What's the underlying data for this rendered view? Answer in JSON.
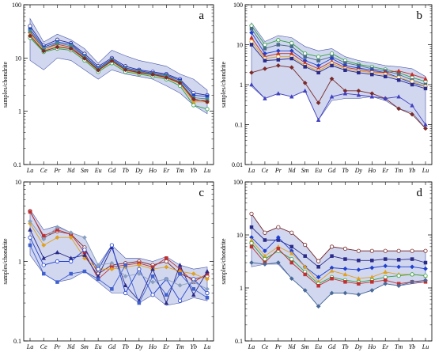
{
  "chart_data": [
    {
      "panel": "a",
      "type": "line",
      "ylabel": "samples/chondrite",
      "yscale": "log",
      "ylim": [
        0.1,
        100
      ],
      "ytick_labels": [
        "0.1",
        "1",
        "10",
        "100"
      ],
      "categories": [
        "La",
        "Ce",
        "Pr",
        "Nd",
        "Sm",
        "Eu",
        "Gd",
        "Tb",
        "Dy",
        "Ho",
        "Er",
        "Tm",
        "Yb",
        "Lu"
      ],
      "band_upper": [
        55,
        20,
        28,
        22,
        15,
        8,
        14,
        11,
        9,
        8,
        7,
        5,
        4,
        2.5
      ],
      "band_lower": [
        9,
        6,
        10,
        9,
        6,
        4,
        6,
        5,
        4.5,
        4,
        3,
        2.2,
        1.3,
        0.9
      ],
      "series": [
        {
          "color": "#2a2a8a",
          "values": [
            40,
            17,
            22,
            19,
            12,
            7,
            10,
            7,
            6,
            5.5,
            5,
            4,
            2.2,
            2
          ]
        },
        {
          "color": "#1f3fd0",
          "values": [
            35,
            16,
            20,
            18,
            11,
            6.5,
            9.5,
            6.5,
            5.8,
            5.2,
            4.8,
            3.8,
            2,
            1.9
          ]
        },
        {
          "color": "#c03030",
          "values": [
            30,
            15,
            18,
            16,
            10,
            6,
            9,
            6,
            5.5,
            5,
            4.4,
            3.5,
            1.6,
            1.6
          ]
        },
        {
          "color": "#e0a020",
          "values": [
            28,
            14,
            17,
            15,
            9.5,
            5.8,
            8.6,
            5.8,
            5.2,
            4.8,
            4.2,
            3.3,
            1.5,
            1.5
          ]
        },
        {
          "color": "#30a040",
          "values": [
            24,
            13,
            15,
            14,
            9,
            5.5,
            8,
            5.5,
            5,
            4.5,
            4,
            3,
            1.3,
            1.1
          ]
        },
        {
          "color": "#4a8a8a",
          "values": [
            32,
            15,
            19,
            17,
            10.5,
            6.2,
            9.2,
            6.2,
            5.6,
            5,
            4.6,
            3.6,
            1.8,
            1.7
          ]
        },
        {
          "color": "#7a2a2a",
          "values": [
            26,
            13.5,
            16,
            15,
            9.8,
            5.9,
            8.8,
            6,
            5.3,
            4.9,
            4.3,
            3.4,
            1.7,
            1.5
          ]
        }
      ]
    },
    {
      "panel": "b",
      "type": "line",
      "ylabel": "samples/chondrite",
      "yscale": "log",
      "ylim": [
        0.01,
        100
      ],
      "ytick_labels": [
        "0.01",
        "0.1",
        "1",
        "10",
        "100"
      ],
      "categories": [
        "La",
        "Ce",
        "Pr",
        "Nd",
        "Sm",
        "Eu",
        "Gd",
        "Tb",
        "Dy",
        "Ho",
        "Er",
        "Tm",
        "Yb",
        "Lu"
      ],
      "band_upper": [
        35,
        12,
        17,
        15,
        9,
        7,
        8,
        5,
        4,
        3.5,
        3,
        2.8,
        2.5,
        1.6
      ],
      "band_lower": [
        0.9,
        0.45,
        0.6,
        0.5,
        0.7,
        0.13,
        0.4,
        0.45,
        0.45,
        0.5,
        0.4,
        0.25,
        0.2,
        0.08
      ],
      "series": [
        {
          "color": "#30a040",
          "values": [
            30,
            10,
            13,
            11,
            6,
            5,
            6,
            4,
            3.2,
            2.8,
            2.4,
            2,
            1.5,
            1.2
          ]
        },
        {
          "color": "#4a6a8a",
          "values": [
            25,
            8,
            10,
            9,
            5,
            4,
            5,
            3.5,
            3,
            2.5,
            2.2,
            1.8,
            1.3,
            1
          ]
        },
        {
          "color": "#1f3fd0",
          "values": [
            20,
            6,
            7,
            7,
            4,
            3,
            4.5,
            3,
            2.6,
            2.3,
            2,
            1.5,
            1.1,
            0.9
          ]
        },
        {
          "color": "#c03030",
          "values": [
            15,
            5,
            6,
            6,
            3.5,
            2.5,
            3.8,
            2.7,
            2.4,
            2.1,
            2,
            2.2,
            1.8,
            1.4
          ]
        },
        {
          "color": "#e0a020",
          "values": [
            12,
            4.5,
            5,
            5,
            3,
            2.2,
            3.4,
            2.5,
            2.2,
            2,
            1.8,
            1.5,
            1.2,
            0.9
          ]
        },
        {
          "color": "#2a2a8a",
          "values": [
            10,
            4,
            4.2,
            4.5,
            2.8,
            2,
            3,
            2.3,
            2,
            1.8,
            1.6,
            1.3,
            1,
            0.8
          ]
        },
        {
          "color": "#7a2a2a",
          "values": [
            2,
            2.5,
            3,
            2.7,
            1.1,
            0.35,
            1.4,
            0.7,
            0.7,
            0.6,
            0.45,
            0.25,
            0.18,
            0.08
          ]
        },
        {
          "color": "#4040c0",
          "values": [
            1,
            0.45,
            0.6,
            0.5,
            0.7,
            0.13,
            0.5,
            0.6,
            0.55,
            0.5,
            0.45,
            0.5,
            0.3,
            0.1
          ]
        }
      ]
    },
    {
      "panel": "c",
      "type": "line",
      "ylabel": "samples/chondrite",
      "yscale": "log",
      "ylim": [
        0.1,
        10
      ],
      "ytick_labels": [
        "0.1",
        "1",
        "10"
      ],
      "categories": [
        "La",
        "Ce",
        "Pr",
        "Nd",
        "Sm",
        "Eu",
        "Gd",
        "Tb",
        "Dy",
        "Ho",
        "Er",
        "Tm",
        "Yb",
        "Lu"
      ],
      "band_upper": [
        4.5,
        2.5,
        2.8,
        2.3,
        2,
        0.9,
        1.6,
        1.1,
        1.1,
        1,
        1.15,
        0.9,
        0.8,
        0.85
      ],
      "band_lower": [
        1.2,
        0.7,
        0.55,
        0.6,
        0.75,
        0.55,
        0.4,
        0.4,
        0.3,
        0.38,
        0.28,
        0.3,
        0.35,
        0.32
      ],
      "series": [
        {
          "color": "#7a2a2a",
          "values": [
            4.3,
            2,
            2.4,
            2.2,
            1.5,
            0.7,
            0.9,
            0.95,
            1,
            0.9,
            1,
            0.7,
            0.6,
            0.65
          ]
        },
        {
          "color": "#c03030",
          "values": [
            4.2,
            2.1,
            2.5,
            2.2,
            1.3,
            0.6,
            0.85,
            0.9,
            0.95,
            0.85,
            1.1,
            0.8,
            0.55,
            0.7
          ]
        },
        {
          "color": "#e0a020",
          "values": [
            3,
            1.6,
            2,
            2,
            1.1,
            0.8,
            0.8,
            0.85,
            0.9,
            0.8,
            0.85,
            0.75,
            0.7,
            0.6
          ]
        },
        {
          "color": "#2a2a8a",
          "values": [
            2.5,
            1.1,
            1.3,
            1.1,
            1.2,
            0.65,
            1.5,
            0.5,
            0.32,
            0.8,
            0.3,
            0.9,
            0.38,
            0.75
          ]
        },
        {
          "color": "#1f3fd0",
          "values": [
            2,
            0.9,
            1,
            1,
            1.4,
            0.8,
            1.6,
            0.4,
            0.8,
            0.38,
            0.6,
            0.32,
            0.6,
            0.4
          ]
        },
        {
          "color": "#4060d0",
          "values": [
            1.6,
            0.7,
            0.55,
            0.7,
            0.75,
            0.6,
            0.45,
            0.9,
            0.3,
            0.65,
            0.38,
            0.7,
            0.45,
            0.35
          ]
        },
        {
          "color": "#8aa0c0",
          "values": [
            3.2,
            1.9,
            2.7,
            2.3,
            2,
            0.9,
            0.95,
            0.65,
            0.7,
            0.55,
            0.6,
            0.5,
            0.55,
            0.45
          ]
        }
      ]
    },
    {
      "panel": "d",
      "type": "line",
      "ylabel": "samples/chondrite",
      "yscale": "log",
      "ylim": [
        0.1,
        100
      ],
      "ytick_labels": [
        "0.1",
        "1",
        "10",
        "100"
      ],
      "categories": [
        "La",
        "Ce",
        "Pr",
        "Nd",
        "Sm",
        "Eu",
        "Gd",
        "Tb",
        "Dy",
        "Ho",
        "Er",
        "Tm",
        "Yb",
        "Lu"
      ],
      "band_upper": [
        25,
        11,
        14,
        11,
        6.5,
        3.2,
        6,
        5.5,
        5,
        5,
        5,
        5,
        5,
        5
      ],
      "band_lower": [
        2.5,
        2.8,
        2.8,
        1.5,
        0.9,
        0.45,
        0.8,
        0.8,
        0.75,
        0.9,
        1.2,
        1.1,
        1.2,
        1.3
      ],
      "series": [
        {
          "color": "#7a2a2a",
          "values": [
            25,
            11,
            14,
            11,
            6.5,
            3.2,
            6,
            5.5,
            5,
            5,
            5,
            5,
            5,
            5
          ]
        },
        {
          "color": "#2a2a8a",
          "values": [
            14,
            8,
            8,
            6,
            4,
            2.5,
            4,
            3.5,
            3.3,
            3.3,
            3.5,
            3.4,
            3.5,
            3
          ]
        },
        {
          "color": "#1f3fd0",
          "values": [
            9,
            5,
            9,
            5,
            2.5,
            1.6,
            2.4,
            2.3,
            2.2,
            2.4,
            2.6,
            2.5,
            2.5,
            2.3
          ]
        },
        {
          "color": "#e0a020",
          "values": [
            8,
            4,
            6,
            4.5,
            2.5,
            1.3,
            2.1,
            1.8,
            1.5,
            1.6,
            2,
            1.8,
            1.8,
            1.7
          ]
        },
        {
          "color": "#30a040",
          "values": [
            7,
            3.5,
            5,
            3.5,
            2,
            1.2,
            1.6,
            1.4,
            1.3,
            1.4,
            1.6,
            1.7,
            1.8,
            1.7
          ]
        },
        {
          "color": "#c03030",
          "values": [
            6,
            3,
            5.5,
            3,
            1.8,
            1.1,
            1.5,
            1.3,
            1.2,
            1.3,
            1.4,
            1.2,
            1.3,
            1.3
          ]
        },
        {
          "color": "#4a6a9a",
          "values": [
            3,
            2.8,
            3,
            1.5,
            0.9,
            0.45,
            0.8,
            0.8,
            0.75,
            0.9,
            1.2,
            1.1,
            1.3,
            1.4
          ]
        }
      ]
    }
  ]
}
